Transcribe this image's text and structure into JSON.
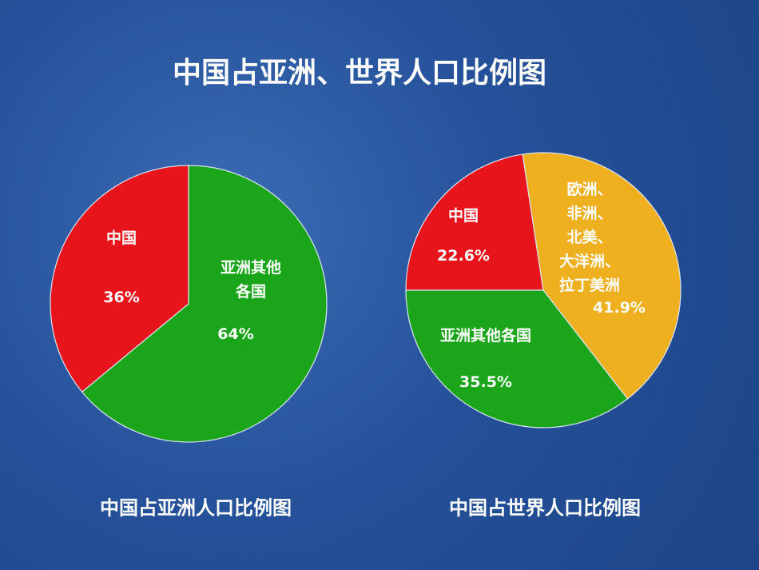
{
  "title": "中国占亚洲、世界人口比例图",
  "chart_data": [
    {
      "type": "pie",
      "title": "中国占亚洲人口比例图",
      "categories": [
        "中国",
        "亚洲其他\n各国"
      ],
      "values": [
        36,
        64
      ],
      "value_labels": [
        "36%",
        "64%"
      ],
      "colors": [
        "#e8141c",
        "#1ba51b"
      ]
    },
    {
      "type": "pie",
      "title": "中国占世界人口比例图",
      "categories": [
        "中国",
        "欧洲、\n非洲、\n北美、\n大洋洲、\n拉丁美洲",
        "亚洲其他各国"
      ],
      "values": [
        22.6,
        41.9,
        35.5
      ],
      "value_labels": [
        "22.6%",
        "41.9%",
        "35.5%"
      ],
      "colors": [
        "#e8141c",
        "#efb020",
        "#1ba51b"
      ]
    }
  ]
}
